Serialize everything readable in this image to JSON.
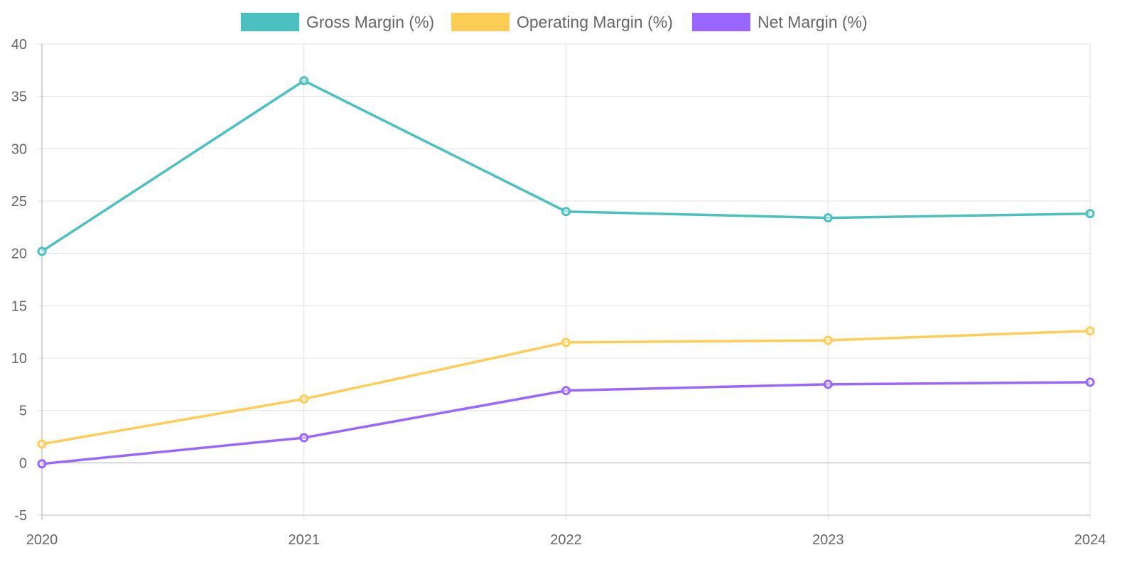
{
  "chart_data": {
    "type": "line",
    "categories": [
      "2020",
      "2021",
      "2022",
      "2023",
      "2024"
    ],
    "series": [
      {
        "name": "Gross Margin (%)",
        "color": "#4BC0C0",
        "values": [
          20.2,
          36.5,
          24.0,
          23.4,
          23.8
        ]
      },
      {
        "name": "Operating Margin (%)",
        "color": "#FFCD56",
        "values": [
          1.8,
          6.1,
          11.5,
          11.7,
          12.6
        ]
      },
      {
        "name": "Net Margin (%)",
        "color": "#9966FF",
        "values": [
          -0.1,
          2.4,
          6.9,
          7.5,
          7.7
        ]
      }
    ],
    "ylim": [
      -5,
      40
    ],
    "yticks": [
      -5,
      0,
      5,
      10,
      15,
      20,
      25,
      30,
      35,
      40
    ],
    "grid": true,
    "legend": "top-center",
    "title": "",
    "xlabel": "",
    "ylabel": ""
  }
}
